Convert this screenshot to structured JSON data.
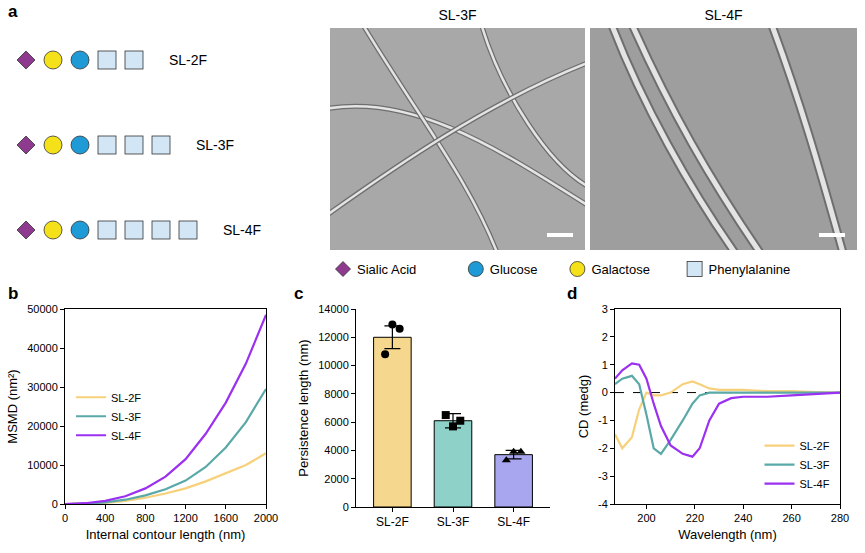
{
  "panel_a": {
    "panel": "a",
    "constructs": [
      {
        "label": "SL-2F",
        "units": [
          "Sialic Acid",
          "Galactose",
          "Glucose",
          "Phenylalanine",
          "Phenylalanine"
        ]
      },
      {
        "label": "SL-3F",
        "units": [
          "Sialic Acid",
          "Galactose",
          "Glucose",
          "Phenylalanine",
          "Phenylalanine",
          "Phenylalanine"
        ]
      },
      {
        "label": "SL-4F",
        "units": [
          "Sialic Acid",
          "Galactose",
          "Glucose",
          "Phenylalanine",
          "Phenylalanine",
          "Phenylalanine",
          "Phenylalanine"
        ]
      }
    ],
    "images": [
      "SL-3F",
      "SL-4F"
    ],
    "key": [
      {
        "name": "Sialic Acid",
        "shape": "diamond",
        "color": "#8E3A8E"
      },
      {
        "name": "Glucose",
        "shape": "circle",
        "color": "#1E9BD7"
      },
      {
        "name": "Galactose",
        "shape": "circle",
        "color": "#F4E11A"
      },
      {
        "name": "Phenylalanine",
        "shape": "square",
        "color": "#D2E6F5"
      }
    ]
  },
  "chart_data": [
    {
      "panel": "b",
      "type": "line",
      "x_label": "Internal contour length (nm)",
      "y_label": "MSMD (nm²)",
      "x": [
        0,
        200,
        400,
        600,
        800,
        1000,
        1200,
        1400,
        1600,
        1800,
        2000
      ],
      "series": [
        {
          "name": "SL-2F",
          "color": "#F7D17A",
          "values": [
            0,
            80,
            300,
            800,
            1600,
            2700,
            4000,
            5800,
            7800,
            10000,
            13000
          ]
        },
        {
          "name": "SL-3F",
          "color": "#5AA9A8",
          "values": [
            0,
            100,
            400,
            1100,
            2200,
            3800,
            6000,
            9500,
            14500,
            21000,
            29500
          ]
        },
        {
          "name": "SL-4F",
          "color": "#9B30F0",
          "values": [
            0,
            200,
            800,
            2000,
            4000,
            7000,
            11500,
            18000,
            26000,
            36000,
            48500
          ]
        }
      ],
      "xlim": [
        0,
        2000
      ],
      "xticks": [
        0,
        400,
        800,
        1200,
        1600,
        2000
      ],
      "ylim": [
        0,
        50000
      ],
      "yticks": [
        0,
        10000,
        20000,
        30000,
        40000,
        50000
      ],
      "grid": false,
      "legend": "center left"
    },
    {
      "panel": "c",
      "type": "bar",
      "y_label": "Persistence length (nm)",
      "categories": [
        "SL-2F",
        "SL-3F",
        "SL-4F"
      ],
      "values": [
        12000,
        6100,
        3700
      ],
      "errors": [
        800,
        500,
        300
      ],
      "points": [
        [
          10800,
          12900,
          12600
        ],
        [
          6500,
          5700,
          6100
        ],
        [
          3300,
          3900,
          3900
        ]
      ],
      "colors": [
        "#F5D78E",
        "#8ED1C9",
        "#A9A6F0"
      ],
      "ylim": [
        0,
        14000
      ],
      "yticks": [
        0,
        2000,
        4000,
        6000,
        8000,
        10000,
        12000,
        14000
      ],
      "grid": false
    },
    {
      "panel": "d",
      "type": "line",
      "x_label": "Wavelength (nm)",
      "y_label": "CD (medg)",
      "x": [
        187,
        190,
        194,
        197,
        200,
        203,
        206,
        210,
        215,
        219,
        222,
        226,
        230,
        235,
        240,
        250,
        260,
        270,
        280
      ],
      "series": [
        {
          "name": "SL-2F",
          "color": "#F7D17A",
          "values": [
            -1.5,
            -2.0,
            -1.6,
            -0.6,
            0.0,
            -0.1,
            -0.1,
            0.0,
            0.3,
            0.4,
            0.3,
            0.15,
            0.1,
            0.1,
            0.1,
            0.05,
            0.05,
            0.02,
            0.0
          ]
        },
        {
          "name": "SL-3F",
          "color": "#5AA9A8",
          "values": [
            0.3,
            0.5,
            0.6,
            0.3,
            -0.8,
            -2.0,
            -2.2,
            -1.7,
            -1.0,
            -0.4,
            -0.1,
            0.0,
            0.0,
            0.0,
            0.0,
            0.0,
            0.0,
            0.0,
            0.0
          ]
        },
        {
          "name": "SL-4F",
          "color": "#9B30F0",
          "values": [
            0.5,
            0.8,
            1.05,
            1.0,
            0.5,
            -0.4,
            -1.2,
            -1.9,
            -2.2,
            -2.3,
            -2.0,
            -1.0,
            -0.4,
            -0.2,
            -0.15,
            -0.15,
            -0.1,
            -0.05,
            0.0
          ]
        }
      ],
      "reference_line": 0,
      "xlim": [
        187,
        280
      ],
      "xticks": [
        200,
        220,
        240,
        260,
        280
      ],
      "ylim": [
        -4,
        3
      ],
      "yticks": [
        -4,
        -3,
        -2,
        -1,
        0,
        1,
        2,
        3
      ],
      "grid": false,
      "legend": "lower right"
    }
  ]
}
